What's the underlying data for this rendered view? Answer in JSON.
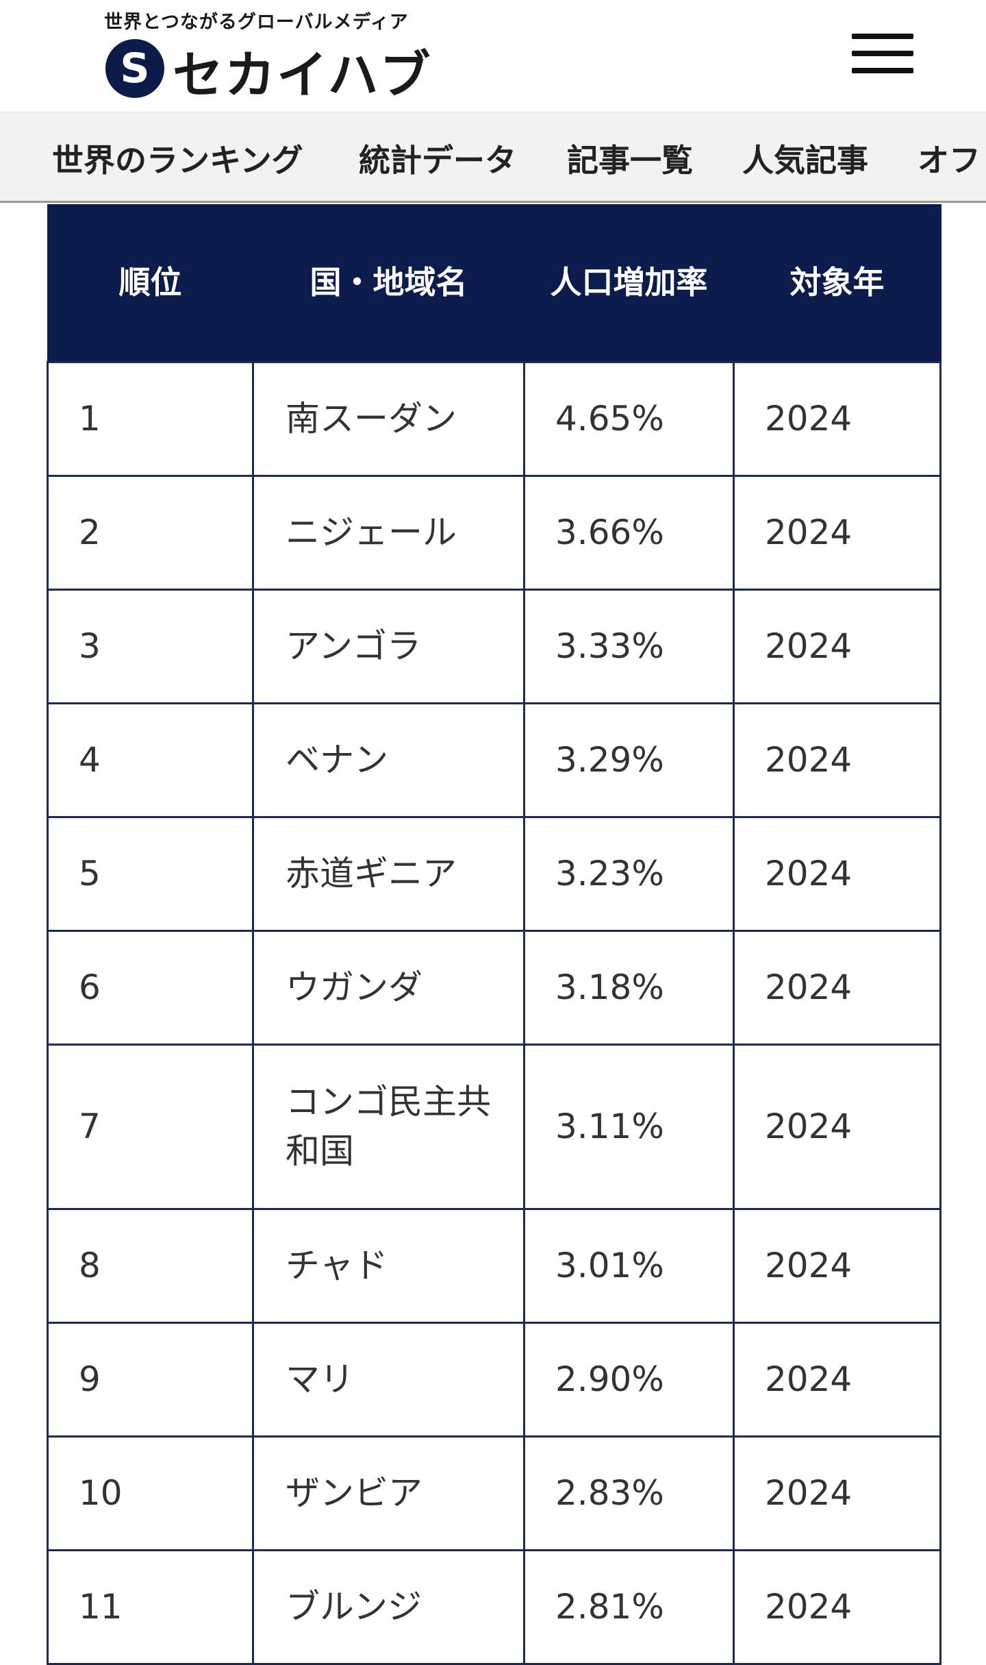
{
  "header": {
    "tagline": "世界とつながるグローバルメディア",
    "logo_mark": "S",
    "logo_text": "セカイハブ",
    "menu_icon": "hamburger-menu-icon"
  },
  "nav": {
    "items": [
      {
        "label": "世界のランキング"
      },
      {
        "label": "統計データ"
      },
      {
        "label": "記事一覧"
      },
      {
        "label": "人気記事"
      },
      {
        "label": "オフ"
      }
    ]
  },
  "table": {
    "headers": [
      "順位",
      "国・地域名",
      "人口増加率",
      "対象年"
    ],
    "rows": [
      {
        "rank": "1",
        "country": "南スーダン",
        "rate": "4.65%",
        "year": "2024"
      },
      {
        "rank": "2",
        "country": "ニジェール",
        "rate": "3.66%",
        "year": "2024"
      },
      {
        "rank": "3",
        "country": "アンゴラ",
        "rate": "3.33%",
        "year": "2024"
      },
      {
        "rank": "4",
        "country": "ベナン",
        "rate": "3.29%",
        "year": "2024"
      },
      {
        "rank": "5",
        "country": "赤道ギニア",
        "rate": "3.23%",
        "year": "2024"
      },
      {
        "rank": "6",
        "country": "ウガンダ",
        "rate": "3.18%",
        "year": "2024"
      },
      {
        "rank": "7",
        "country": "コンゴ民主共和国",
        "rate": "3.11%",
        "year": "2024"
      },
      {
        "rank": "8",
        "country": "チャド",
        "rate": "3.01%",
        "year": "2024"
      },
      {
        "rank": "9",
        "country": "マリ",
        "rate": "2.90%",
        "year": "2024"
      },
      {
        "rank": "10",
        "country": "ザンビア",
        "rate": "2.83%",
        "year": "2024"
      },
      {
        "rank": "11",
        "country": "ブルンジ",
        "rate": "2.81%",
        "year": "2024"
      }
    ]
  },
  "colors": {
    "header_bg": "#0b1c4d",
    "logo_mark": "#0d1b4b",
    "nav_bg": "#f2f2f2"
  }
}
